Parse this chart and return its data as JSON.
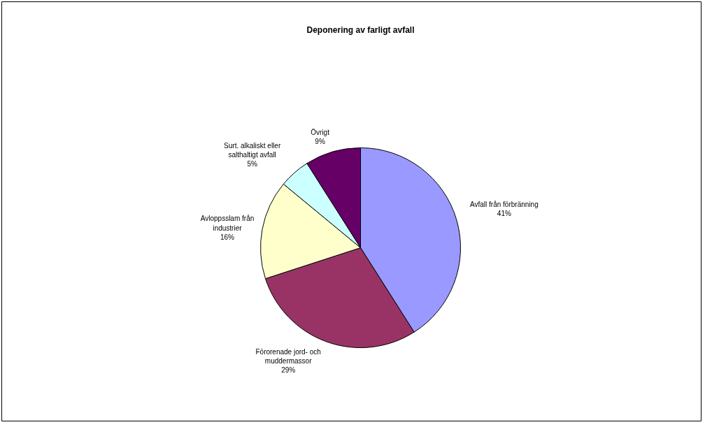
{
  "chart_data": {
    "type": "pie",
    "title": "Deponering av farligt avfall",
    "categories": [
      "Avfall från förbränning",
      "Förorenade jord- och muddermassor",
      "Avloppsslam från industrier",
      "Surt. alkaliskt eller salthaltigt avfall",
      "Övrigt"
    ],
    "values": [
      41,
      29,
      16,
      5,
      9
    ],
    "value_labels": [
      "41%",
      "29%",
      "16%",
      "5%",
      "9%"
    ],
    "colors": [
      "#9999ff",
      "#993366",
      "#ffffcc",
      "#ccffff",
      "#660066"
    ]
  }
}
